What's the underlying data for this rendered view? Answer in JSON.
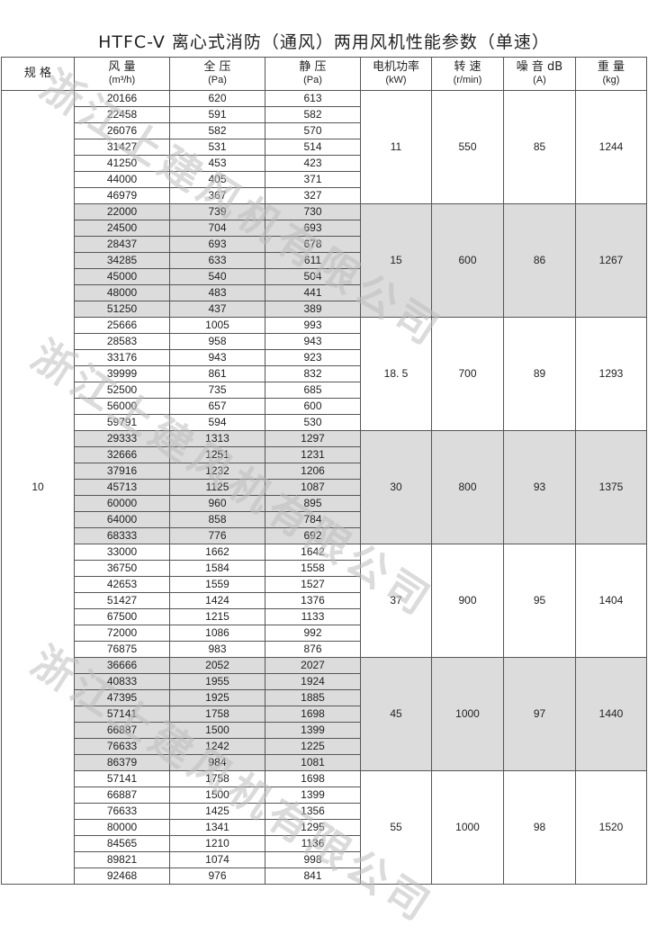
{
  "title": "HTFC-V 离心式消防（通风）两用风机性能参数（单速）",
  "watermark": "浙江上建风机有限公司",
  "headers": [
    {
      "label": "规 格",
      "unit": ""
    },
    {
      "label": "风 量",
      "unit": "(m³/h)"
    },
    {
      "label": "全 压",
      "unit": "(Pa)"
    },
    {
      "label": "静 压",
      "unit": "(Pa)"
    },
    {
      "label": "电机功率",
      "unit": "(kW)"
    },
    {
      "label": "转 速",
      "unit": "(r/min)"
    },
    {
      "label": "噪 音 dB",
      "unit": "(A)"
    },
    {
      "label": "重 量",
      "unit": "(kg)"
    }
  ],
  "spec": "10",
  "shade_color": "#dcdcdc",
  "groups": [
    {
      "power": "11",
      "speed": "550",
      "noise": "85",
      "weight": "1244",
      "rows": [
        [
          "20166",
          "620",
          "613"
        ],
        [
          "22458",
          "591",
          "582"
        ],
        [
          "26076",
          "582",
          "570"
        ],
        [
          "31427",
          "531",
          "514"
        ],
        [
          "41250",
          "453",
          "423"
        ],
        [
          "44000",
          "405",
          "371"
        ],
        [
          "46979",
          "367",
          "327"
        ]
      ]
    },
    {
      "power": "15",
      "speed": "600",
      "noise": "86",
      "weight": "1267",
      "rows": [
        [
          "22000",
          "739",
          "730"
        ],
        [
          "24500",
          "704",
          "693"
        ],
        [
          "28437",
          "693",
          "678"
        ],
        [
          "34285",
          "633",
          "611"
        ],
        [
          "45000",
          "540",
          "504"
        ],
        [
          "48000",
          "483",
          "441"
        ],
        [
          "51250",
          "437",
          "389"
        ]
      ]
    },
    {
      "power": "18. 5",
      "speed": "700",
      "noise": "89",
      "weight": "1293",
      "rows": [
        [
          "25666",
          "1005",
          "993"
        ],
        [
          "28583",
          "958",
          "943"
        ],
        [
          "33176",
          "943",
          "923"
        ],
        [
          "39999",
          "861",
          "832"
        ],
        [
          "52500",
          "735",
          "685"
        ],
        [
          "56000",
          "657",
          "600"
        ],
        [
          "59791",
          "594",
          "530"
        ]
      ]
    },
    {
      "power": "30",
      "speed": "800",
      "noise": "93",
      "weight": "1375",
      "rows": [
        [
          "29333",
          "1313",
          "1297"
        ],
        [
          "32666",
          "1251",
          "1231"
        ],
        [
          "37916",
          "1232",
          "1206"
        ],
        [
          "45713",
          "1125",
          "1087"
        ],
        [
          "60000",
          "960",
          "895"
        ],
        [
          "64000",
          "858",
          "784"
        ],
        [
          "68333",
          "776",
          "692"
        ]
      ]
    },
    {
      "power": "37",
      "speed": "900",
      "noise": "95",
      "weight": "1404",
      "rows": [
        [
          "33000",
          "1662",
          "1642"
        ],
        [
          "36750",
          "1584",
          "1558"
        ],
        [
          "42653",
          "1559",
          "1527"
        ],
        [
          "51427",
          "1424",
          "1376"
        ],
        [
          "67500",
          "1215",
          "1133"
        ],
        [
          "72000",
          "1086",
          "992"
        ],
        [
          "76875",
          "983",
          "876"
        ]
      ]
    },
    {
      "power": "45",
      "speed": "1000",
      "noise": "97",
      "weight": "1440",
      "rows": [
        [
          "36666",
          "2052",
          "2027"
        ],
        [
          "40833",
          "1955",
          "1924"
        ],
        [
          "47395",
          "1925",
          "1885"
        ],
        [
          "57141",
          "1758",
          "1698"
        ],
        [
          "66887",
          "1500",
          "1399"
        ],
        [
          "76633",
          "1242",
          "1225"
        ],
        [
          "86379",
          "984",
          "1081"
        ]
      ]
    },
    {
      "power": "55",
      "speed": "1000",
      "noise": "98",
      "weight": "1520",
      "rows": [
        [
          "57141",
          "1758",
          "1698"
        ],
        [
          "66887",
          "1500",
          "1399"
        ],
        [
          "76633",
          "1425",
          "1356"
        ],
        [
          "80000",
          "1341",
          "1295"
        ],
        [
          "84565",
          "1210",
          "1136"
        ],
        [
          "89821",
          "1074",
          "998"
        ],
        [
          "92468",
          "976",
          "841"
        ]
      ]
    }
  ]
}
